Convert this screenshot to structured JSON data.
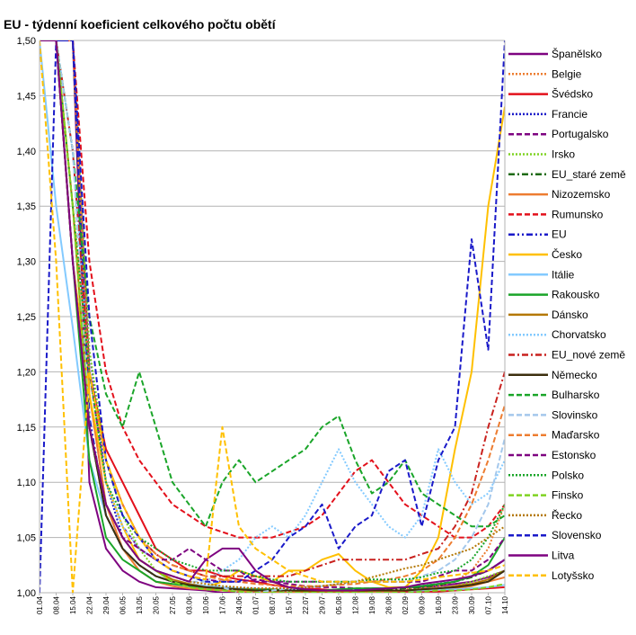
{
  "chart_data": {
    "type": "line",
    "title": "EU - týdenní koeficient celkového počtu obětí",
    "xlabel": "",
    "ylabel": "",
    "ylim": [
      1.0,
      1.5
    ],
    "yticks": [
      "1,00",
      "1,05",
      "1,10",
      "1,15",
      "1,20",
      "1,25",
      "1,30",
      "1,35",
      "1,40",
      "1,45",
      "1,50"
    ],
    "categories": [
      "01.04",
      "08.04",
      "15.04",
      "22.04",
      "29.04",
      "06.05",
      "13.05",
      "20.05",
      "27.05",
      "03.06",
      "10.06",
      "17.06",
      "24.06",
      "01.07",
      "08.07",
      "15.07",
      "22.07",
      "29.07",
      "05.08",
      "12.08",
      "19.08",
      "26.08",
      "02.09",
      "09.09",
      "16.09",
      "23.09",
      "30.09",
      "07.10",
      "14.10"
    ],
    "grid": true,
    "legend_position": "right",
    "series": [
      {
        "name": "Španělsko",
        "color": "#7e0380",
        "dash": "solid",
        "values": [
          1.5,
          1.5,
          1.5,
          1.1,
          1.04,
          1.02,
          1.01,
          1.005,
          1.004,
          1.003,
          1.002,
          1.0,
          1.0,
          1.0,
          1.0,
          1.0,
          1.0,
          1.0,
          1.0,
          1.002,
          1.004,
          1.004,
          1.005,
          1.005,
          1.006,
          1.008,
          1.01,
          1.014,
          1.02
        ]
      },
      {
        "name": "Belgie",
        "color": "#ed7d31",
        "dash": "dotted",
        "values": [
          1.5,
          1.5,
          1.5,
          1.18,
          1.08,
          1.04,
          1.02,
          1.01,
          1.008,
          1.006,
          1.004,
          1.003,
          1.002,
          1.002,
          1.001,
          1.001,
          1.001,
          1.001,
          1.001,
          1.001,
          1.002,
          1.002,
          1.003,
          1.004,
          1.006,
          1.01,
          1.02,
          1.04,
          1.08
        ]
      },
      {
        "name": "Švédsko",
        "color": "#e3101b",
        "dash": "solid",
        "values": [
          1.5,
          1.5,
          1.5,
          1.2,
          1.13,
          1.1,
          1.07,
          1.04,
          1.03,
          1.02,
          1.02,
          1.015,
          1.012,
          1.01,
          1.007,
          1.005,
          1.004,
          1.003,
          1.002,
          1.002,
          1.002,
          1.001,
          1.001,
          1.001,
          1.001,
          1.002,
          1.003,
          1.004,
          1.005
        ]
      },
      {
        "name": "Francie",
        "color": "#1a1ac9",
        "dash": "dotted",
        "values": [
          1.5,
          1.5,
          1.5,
          1.22,
          1.1,
          1.05,
          1.03,
          1.02,
          1.01,
          1.008,
          1.006,
          1.005,
          1.004,
          1.004,
          1.003,
          1.003,
          1.002,
          1.002,
          1.002,
          1.003,
          1.003,
          1.004,
          1.005,
          1.006,
          1.008,
          1.01,
          1.015,
          1.02,
          1.03
        ]
      },
      {
        "name": "Portugalsko",
        "color": "#7e0380",
        "dash": "dashed",
        "values": [
          1.5,
          1.5,
          1.5,
          1.2,
          1.1,
          1.06,
          1.04,
          1.03,
          1.02,
          1.015,
          1.012,
          1.01,
          1.01,
          1.012,
          1.01,
          1.008,
          1.006,
          1.005,
          1.005,
          1.004,
          1.004,
          1.004,
          1.005,
          1.006,
          1.008,
          1.01,
          1.015,
          1.02,
          1.03
        ]
      },
      {
        "name": "Irsko",
        "color": "#7fd322",
        "dash": "dotted",
        "values": [
          1.5,
          1.5,
          1.5,
          1.22,
          1.12,
          1.07,
          1.04,
          1.02,
          1.01,
          1.006,
          1.004,
          1.003,
          1.002,
          1.001,
          1.001,
          1.0,
          1.0,
          1.0,
          1.0,
          1.0,
          1.001,
          1.001,
          1.002,
          1.003,
          1.004,
          1.006,
          1.01,
          1.015,
          1.02
        ]
      },
      {
        "name": "EU_staré země",
        "color": "#1e6b12",
        "dash": "dashdot",
        "values": [
          1.5,
          1.5,
          1.5,
          1.15,
          1.07,
          1.04,
          1.025,
          1.015,
          1.01,
          1.007,
          1.005,
          1.004,
          1.003,
          1.002,
          1.002,
          1.002,
          1.002,
          1.002,
          1.002,
          1.002,
          1.003,
          1.003,
          1.004,
          1.005,
          1.007,
          1.01,
          1.014,
          1.02,
          1.03
        ]
      },
      {
        "name": "Nizozemsko",
        "color": "#ed7d31",
        "dash": "solid",
        "values": [
          1.5,
          1.5,
          1.5,
          1.18,
          1.08,
          1.04,
          1.02,
          1.01,
          1.006,
          1.004,
          1.003,
          1.002,
          1.001,
          1.001,
          1.0,
          1.0,
          1.0,
          1.001,
          1.001,
          1.001,
          1.001,
          1.001,
          1.002,
          1.002,
          1.003,
          1.004,
          1.006,
          1.01,
          1.014
        ]
      },
      {
        "name": "Rumunsko",
        "color": "#e3101b",
        "dash": "dashed",
        "values": [
          1.5,
          1.5,
          1.5,
          1.3,
          1.2,
          1.15,
          1.12,
          1.1,
          1.08,
          1.07,
          1.06,
          1.055,
          1.05,
          1.05,
          1.05,
          1.055,
          1.06,
          1.07,
          1.09,
          1.11,
          1.12,
          1.1,
          1.08,
          1.07,
          1.06,
          1.05,
          1.05,
          1.06,
          1.08
        ]
      },
      {
        "name": "EU",
        "color": "#1a1ac9",
        "dash": "dashdotdot",
        "values": [
          1.5,
          1.5,
          1.5,
          1.16,
          1.07,
          1.04,
          1.025,
          1.015,
          1.01,
          1.007,
          1.005,
          1.004,
          1.003,
          1.002,
          1.002,
          1.002,
          1.002,
          1.002,
          1.003,
          1.003,
          1.004,
          1.004,
          1.005,
          1.006,
          1.008,
          1.01,
          1.015,
          1.02,
          1.03
        ]
      },
      {
        "name": "Česko",
        "color": "#ffc000",
        "dash": "solid",
        "values": [
          1.5,
          1.5,
          1.3,
          1.18,
          1.1,
          1.06,
          1.03,
          1.02,
          1.01,
          1.007,
          1.005,
          1.01,
          1.02,
          1.015,
          1.01,
          1.02,
          1.02,
          1.03,
          1.035,
          1.02,
          1.01,
          1.005,
          1.005,
          1.02,
          1.05,
          1.13,
          1.2,
          1.35,
          1.44
        ]
      },
      {
        "name": "Itálie",
        "color": "#83caff",
        "dash": "solid",
        "values": [
          1.5,
          1.35,
          1.24,
          1.12,
          1.07,
          1.04,
          1.025,
          1.015,
          1.01,
          1.008,
          1.006,
          1.005,
          1.004,
          1.003,
          1.003,
          1.002,
          1.002,
          1.002,
          1.002,
          1.002,
          1.002,
          1.002,
          1.002,
          1.002,
          1.003,
          1.003,
          1.004,
          1.005,
          1.007
        ]
      },
      {
        "name": "Rakousko",
        "color": "#1aa529",
        "dash": "solid",
        "values": [
          1.5,
          1.5,
          1.3,
          1.12,
          1.05,
          1.03,
          1.02,
          1.01,
          1.008,
          1.006,
          1.005,
          1.004,
          1.003,
          1.003,
          1.003,
          1.002,
          1.002,
          1.002,
          1.003,
          1.004,
          1.004,
          1.004,
          1.005,
          1.006,
          1.008,
          1.01,
          1.015,
          1.025,
          1.05
        ]
      },
      {
        "name": "Dánsko",
        "color": "#b47804",
        "dash": "solid",
        "values": [
          1.5,
          1.5,
          1.35,
          1.15,
          1.08,
          1.05,
          1.03,
          1.02,
          1.012,
          1.008,
          1.005,
          1.004,
          1.003,
          1.002,
          1.002,
          1.002,
          1.001,
          1.001,
          1.001,
          1.001,
          1.002,
          1.002,
          1.002,
          1.003,
          1.004,
          1.006,
          1.008,
          1.012,
          1.02
        ]
      },
      {
        "name": "Chorvatsko",
        "color": "#83caff",
        "dash": "dotted",
        "values": [
          1.5,
          1.5,
          1.4,
          1.2,
          1.1,
          1.06,
          1.04,
          1.03,
          1.02,
          1.015,
          1.01,
          1.02,
          1.03,
          1.05,
          1.06,
          1.05,
          1.07,
          1.1,
          1.13,
          1.1,
          1.08,
          1.06,
          1.05,
          1.07,
          1.13,
          1.1,
          1.08,
          1.09,
          1.12
        ]
      },
      {
        "name": "EU_nové země",
        "color": "#c9211e",
        "dash": "dashdot",
        "values": [
          1.5,
          1.5,
          1.4,
          1.2,
          1.12,
          1.08,
          1.05,
          1.035,
          1.025,
          1.02,
          1.015,
          1.015,
          1.015,
          1.015,
          1.015,
          1.015,
          1.02,
          1.025,
          1.03,
          1.03,
          1.03,
          1.03,
          1.03,
          1.035,
          1.04,
          1.06,
          1.09,
          1.15,
          1.2
        ]
      },
      {
        "name": "Německo",
        "color": "#3c2f0e",
        "dash": "solid",
        "values": [
          1.5,
          1.5,
          1.3,
          1.15,
          1.07,
          1.04,
          1.025,
          1.015,
          1.01,
          1.007,
          1.005,
          1.004,
          1.003,
          1.002,
          1.002,
          1.002,
          1.002,
          1.002,
          1.002,
          1.002,
          1.002,
          1.002,
          1.002,
          1.003,
          1.004,
          1.005,
          1.007,
          1.01,
          1.02
        ]
      },
      {
        "name": "Bulharsko",
        "color": "#1aa529",
        "dash": "dashed",
        "values": [
          1.5,
          1.5,
          1.4,
          1.25,
          1.18,
          1.15,
          1.2,
          1.15,
          1.1,
          1.08,
          1.06,
          1.1,
          1.12,
          1.1,
          1.11,
          1.12,
          1.13,
          1.15,
          1.16,
          1.12,
          1.09,
          1.1,
          1.12,
          1.09,
          1.08,
          1.07,
          1.06,
          1.06,
          1.07
        ]
      },
      {
        "name": "Slovinsko",
        "color": "#a4c8ec",
        "dash": "dashed",
        "values": [
          1.5,
          1.5,
          1.4,
          1.15,
          1.08,
          1.05,
          1.03,
          1.02,
          1.015,
          1.01,
          1.01,
          1.005,
          1.0,
          1.0,
          1.002,
          1.004,
          1.005,
          1.006,
          1.008,
          1.01,
          1.01,
          1.01,
          1.01,
          1.015,
          1.02,
          1.03,
          1.05,
          1.08,
          1.14
        ]
      },
      {
        "name": "Maďarsko",
        "color": "#ed7d31",
        "dash": "dashed",
        "values": [
          1.5,
          1.5,
          1.35,
          1.2,
          1.12,
          1.08,
          1.05,
          1.035,
          1.025,
          1.02,
          1.015,
          1.012,
          1.01,
          1.008,
          1.007,
          1.006,
          1.006,
          1.006,
          1.007,
          1.008,
          1.01,
          1.012,
          1.015,
          1.02,
          1.03,
          1.05,
          1.08,
          1.12,
          1.17
        ]
      },
      {
        "name": "Estonsko",
        "color": "#7e0380",
        "dash": "dashed",
        "values": [
          1.5,
          1.5,
          1.3,
          1.15,
          1.08,
          1.05,
          1.04,
          1.03,
          1.03,
          1.04,
          1.03,
          1.02,
          1.02,
          1.01,
          1.01,
          1.01,
          1.01,
          1.01,
          1.01,
          1.01,
          1.01,
          1.01,
          1.01,
          1.01,
          1.015,
          1.02,
          1.02,
          1.03,
          1.05
        ]
      },
      {
        "name": "Polsko",
        "color": "#1aa529",
        "dash": "dotted",
        "values": [
          1.5,
          1.5,
          1.35,
          1.2,
          1.1,
          1.07,
          1.05,
          1.04,
          1.03,
          1.025,
          1.02,
          1.02,
          1.02,
          1.015,
          1.012,
          1.01,
          1.01,
          1.01,
          1.01,
          1.01,
          1.012,
          1.012,
          1.012,
          1.014,
          1.018,
          1.02,
          1.03,
          1.05,
          1.08
        ]
      },
      {
        "name": "Finsko",
        "color": "#7fd322",
        "dash": "dashed",
        "values": [
          1.5,
          1.5,
          1.35,
          1.15,
          1.08,
          1.05,
          1.03,
          1.02,
          1.01,
          1.005,
          1.003,
          1.002,
          1.001,
          1.0,
          1.0,
          1.0,
          1.0,
          1.0,
          1.0,
          1.0,
          1.0,
          1.0,
          1.0,
          1.001,
          1.002,
          1.002,
          1.003,
          1.005,
          1.008
        ]
      },
      {
        "name": "Řecko",
        "color": "#b47804",
        "dash": "dotted",
        "values": [
          1.5,
          1.5,
          1.3,
          1.15,
          1.08,
          1.05,
          1.03,
          1.02,
          1.015,
          1.01,
          1.008,
          1.006,
          1.005,
          1.004,
          1.004,
          1.004,
          1.005,
          1.006,
          1.008,
          1.01,
          1.014,
          1.018,
          1.022,
          1.025,
          1.03,
          1.035,
          1.04,
          1.05,
          1.06
        ]
      },
      {
        "name": "Slovensko",
        "color": "#1a1ac9",
        "dash": "dashed",
        "values": [
          1.0,
          1.5,
          1.5,
          1.25,
          1.12,
          1.07,
          1.05,
          1.03,
          1.02,
          1.015,
          1.01,
          1.01,
          1.01,
          1.02,
          1.03,
          1.05,
          1.06,
          1.08,
          1.04,
          1.06,
          1.07,
          1.11,
          1.12,
          1.06,
          1.12,
          1.15,
          1.32,
          1.22,
          1.5
        ]
      },
      {
        "name": "Litva",
        "color": "#7e0380",
        "dash": "solid",
        "values": [
          1.5,
          1.5,
          1.3,
          1.15,
          1.08,
          1.05,
          1.03,
          1.02,
          1.015,
          1.01,
          1.03,
          1.04,
          1.04,
          1.02,
          1.01,
          1.005,
          1.003,
          1.002,
          1.002,
          1.002,
          1.003,
          1.004,
          1.005,
          1.008,
          1.01,
          1.012,
          1.015,
          1.02,
          1.03
        ]
      },
      {
        "name": "Lotyšsko",
        "color": "#ffc000",
        "dash": "dashed",
        "values": [
          1.5,
          1.3,
          1.0,
          1.2,
          1.12,
          1.08,
          1.05,
          1.03,
          1.02,
          1.015,
          1.012,
          1.15,
          1.06,
          1.04,
          1.03,
          1.02,
          1.015,
          1.01,
          1.01,
          1.01,
          1.01,
          1.01,
          1.01,
          1.012,
          1.014,
          1.016,
          1.018,
          1.02,
          1.025
        ]
      }
    ]
  }
}
